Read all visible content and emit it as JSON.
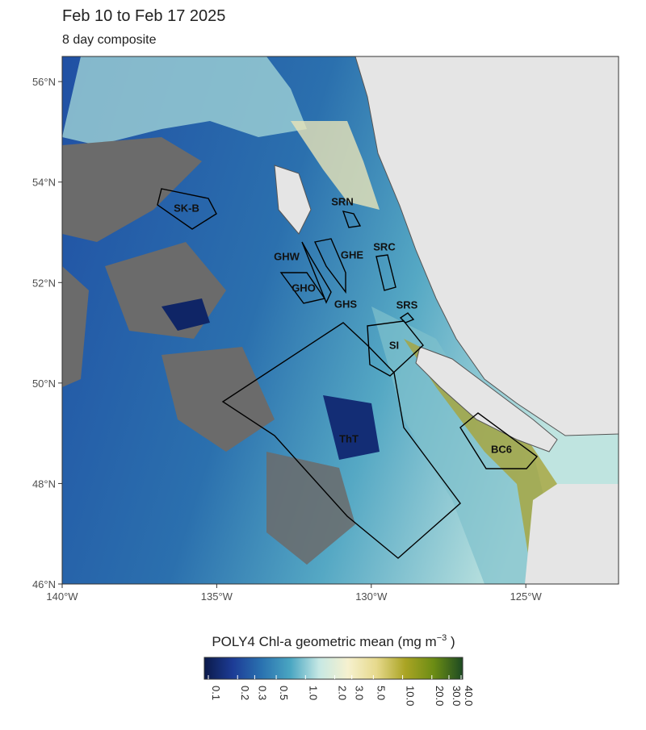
{
  "header": {
    "title": "Feb 10 to Feb 17 2025",
    "subtitle": "8 day composite"
  },
  "map": {
    "xlim": [
      -140,
      -122
    ],
    "ylim": [
      46,
      56.5
    ],
    "xticks": [
      {
        "value": -140,
        "label": "140°W"
      },
      {
        "value": -135,
        "label": "135°W"
      },
      {
        "value": -130,
        "label": "130°W"
      },
      {
        "value": -125,
        "label": "125°W"
      }
    ],
    "yticks": [
      {
        "value": 46,
        "label": "46°N"
      },
      {
        "value": 48,
        "label": "48°N"
      },
      {
        "value": 50,
        "label": "50°N"
      },
      {
        "value": 52,
        "label": "52°N"
      },
      {
        "value": 54,
        "label": "54°N"
      },
      {
        "value": 56,
        "label": "56°N"
      }
    ],
    "regions": [
      "SK-B",
      "SRN",
      "GHE",
      "SRC",
      "GHW",
      "GHO",
      "GHS",
      "SRS",
      "SI",
      "ThT",
      "BC6"
    ]
  },
  "legend": {
    "title": "POLY4 Chl-a geometric mean (mg m",
    "title_sup": "−3",
    "title_end": " )",
    "log": true,
    "lim": [
      0.1,
      40
    ],
    "colors": [
      "#0b1a4a",
      "#1d3c96",
      "#2a72b0",
      "#4aa6c2",
      "#c6e8e4",
      "#f6f1cf",
      "#e6d98c",
      "#aaa424",
      "#6b8c14",
      "#1d4a22"
    ],
    "ticks": [
      {
        "value": 0.1,
        "label": "0.1"
      },
      {
        "value": 0.2,
        "label": "0.2"
      },
      {
        "value": 0.3,
        "label": "0.3"
      },
      {
        "value": 0.5,
        "label": "0.5"
      },
      {
        "value": 1,
        "label": "1.0"
      },
      {
        "value": 2,
        "label": "2.0"
      },
      {
        "value": 3,
        "label": "3.0"
      },
      {
        "value": 5,
        "label": "5.0"
      },
      {
        "value": 10,
        "label": "10.0"
      },
      {
        "value": 20,
        "label": "20.0"
      },
      {
        "value": 30,
        "label": "30.0"
      },
      {
        "value": 40,
        "label": "40.0"
      }
    ]
  }
}
